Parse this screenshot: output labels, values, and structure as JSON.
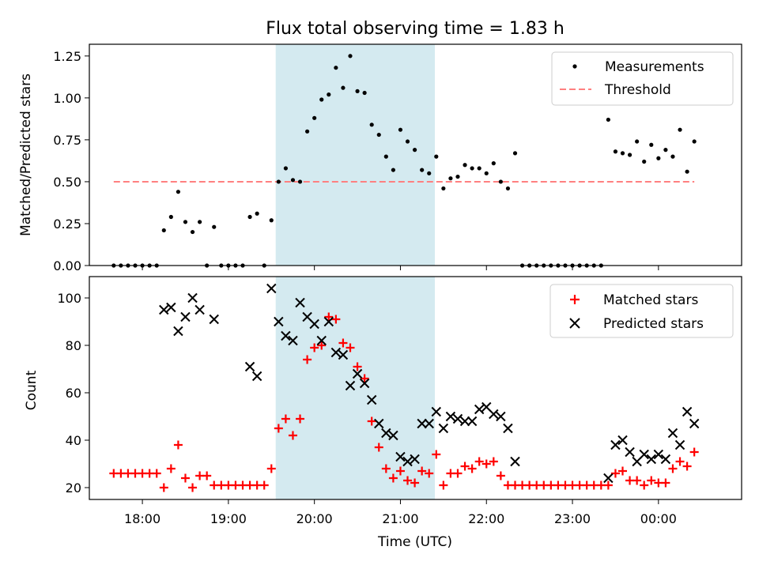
{
  "chart_data": [
    {
      "type": "scatter",
      "title": "Flux total observing time = 1.83 h",
      "xlabel": "",
      "ylabel": "Matched/Predicted stars",
      "xlim": [
        "17:23",
        "00:58"
      ],
      "ylim": [
        0,
        1.32
      ],
      "yticks": [
        "0.00",
        "0.25",
        "0.50",
        "0.75",
        "1.00",
        "1.25"
      ],
      "grid": false,
      "legend_position": "top-right",
      "shaded_interval": {
        "start": "19:33",
        "end": "21:24",
        "color": "#d4eaf0"
      },
      "series": [
        {
          "name": "Measurements",
          "marker": "dot",
          "color": "#000000",
          "points": [
            [
              "17:40",
              0
            ],
            [
              "17:45",
              0
            ],
            [
              "17:50",
              0
            ],
            [
              "17:55",
              0
            ],
            [
              "18:00",
              0
            ],
            [
              "18:05",
              0
            ],
            [
              "18:10",
              0
            ],
            [
              "18:15",
              0.21
            ],
            [
              "18:20",
              0.29
            ],
            [
              "18:25",
              0.44
            ],
            [
              "18:30",
              0.26
            ],
            [
              "18:35",
              0.2
            ],
            [
              "18:40",
              0.26
            ],
            [
              "18:45",
              0
            ],
            [
              "18:50",
              0.23
            ],
            [
              "18:55",
              0
            ],
            [
              "19:00",
              0
            ],
            [
              "19:05",
              0
            ],
            [
              "19:10",
              0
            ],
            [
              "19:15",
              0.29
            ],
            [
              "19:20",
              0.31
            ],
            [
              "19:25",
              0
            ],
            [
              "19:30",
              0.27
            ],
            [
              "19:35",
              0.5
            ],
            [
              "19:40",
              0.58
            ],
            [
              "19:45",
              0.51
            ],
            [
              "19:50",
              0.5
            ],
            [
              "19:55",
              0.8
            ],
            [
              "20:00",
              0.88
            ],
            [
              "20:05",
              0.99
            ],
            [
              "20:10",
              1.02
            ],
            [
              "20:15",
              1.18
            ],
            [
              "20:20",
              1.06
            ],
            [
              "20:25",
              1.25
            ],
            [
              "20:30",
              1.04
            ],
            [
              "20:35",
              1.03
            ],
            [
              "20:40",
              0.84
            ],
            [
              "20:45",
              0.78
            ],
            [
              "20:50",
              0.65
            ],
            [
              "20:55",
              0.57
            ],
            [
              "21:00",
              0.81
            ],
            [
              "21:05",
              0.74
            ],
            [
              "21:10",
              0.69
            ],
            [
              "21:15",
              0.57
            ],
            [
              "21:20",
              0.55
            ],
            [
              "21:25",
              0.65
            ],
            [
              "21:30",
              0.46
            ],
            [
              "21:35",
              0.52
            ],
            [
              "21:40",
              0.53
            ],
            [
              "21:45",
              0.6
            ],
            [
              "21:50",
              0.58
            ],
            [
              "21:55",
              0.58
            ],
            [
              "22:00",
              0.55
            ],
            [
              "22:05",
              0.61
            ],
            [
              "22:10",
              0.5
            ],
            [
              "22:15",
              0.46
            ],
            [
              "22:20",
              0.67
            ],
            [
              "22:25",
              0
            ],
            [
              "22:30",
              0
            ],
            [
              "22:35",
              0
            ],
            [
              "22:40",
              0
            ],
            [
              "22:45",
              0
            ],
            [
              "22:50",
              0
            ],
            [
              "22:55",
              0
            ],
            [
              "23:00",
              0
            ],
            [
              "23:05",
              0
            ],
            [
              "23:10",
              0
            ],
            [
              "23:15",
              0
            ],
            [
              "23:20",
              0
            ],
            [
              "23:25",
              0.87
            ],
            [
              "23:30",
              0.68
            ],
            [
              "23:35",
              0.67
            ],
            [
              "23:40",
              0.66
            ],
            [
              "23:45",
              0.74
            ],
            [
              "23:50",
              0.62
            ],
            [
              "23:55",
              0.72
            ],
            [
              "00:00",
              0.64
            ],
            [
              "00:05",
              0.69
            ],
            [
              "00:10",
              0.65
            ],
            [
              "00:15",
              0.81
            ],
            [
              "00:20",
              0.56
            ],
            [
              "00:25",
              0.74
            ]
          ]
        },
        {
          "name": "Threshold",
          "type": "line",
          "style": "dashed",
          "color": "#ff8080",
          "points": [
            [
              "17:40",
              0.5
            ],
            [
              "00:25",
              0.5
            ]
          ]
        }
      ]
    },
    {
      "type": "scatter",
      "title": "",
      "xlabel": "Time (UTC)",
      "ylabel": "Count",
      "xlim": [
        "17:23",
        "00:58"
      ],
      "ylim": [
        15,
        109
      ],
      "yticks": [
        "20",
        "40",
        "60",
        "80",
        "100"
      ],
      "xticks": [
        "18:00",
        "19:00",
        "20:00",
        "21:00",
        "22:00",
        "23:00",
        "00:00"
      ],
      "grid": false,
      "legend_position": "top-right",
      "shaded_interval": {
        "start": "19:33",
        "end": "21:24",
        "color": "#d4eaf0"
      },
      "series": [
        {
          "name": "Matched stars",
          "marker": "plus",
          "color": "#ff0000",
          "points": [
            [
              "17:40",
              26
            ],
            [
              "17:45",
              26
            ],
            [
              "17:50",
              26
            ],
            [
              "17:55",
              26
            ],
            [
              "18:00",
              26
            ],
            [
              "18:05",
              26
            ],
            [
              "18:10",
              26
            ],
            [
              "18:15",
              20
            ],
            [
              "18:20",
              28
            ],
            [
              "18:25",
              38
            ],
            [
              "18:30",
              24
            ],
            [
              "18:35",
              20
            ],
            [
              "18:40",
              25
            ],
            [
              "18:45",
              25
            ],
            [
              "18:50",
              21
            ],
            [
              "18:55",
              21
            ],
            [
              "19:00",
              21
            ],
            [
              "19:05",
              21
            ],
            [
              "19:10",
              21
            ],
            [
              "19:15",
              21
            ],
            [
              "19:20",
              21
            ],
            [
              "19:25",
              21
            ],
            [
              "19:30",
              28
            ],
            [
              "19:35",
              45
            ],
            [
              "19:40",
              49
            ],
            [
              "19:45",
              42
            ],
            [
              "19:50",
              49
            ],
            [
              "19:55",
              74
            ],
            [
              "20:00",
              79
            ],
            [
              "20:05",
              80
            ],
            [
              "20:10",
              92
            ],
            [
              "20:15",
              91
            ],
            [
              "20:20",
              81
            ],
            [
              "20:25",
              79
            ],
            [
              "20:30",
              71
            ],
            [
              "20:35",
              66
            ],
            [
              "20:40",
              48
            ],
            [
              "20:45",
              37
            ],
            [
              "20:50",
              28
            ],
            [
              "20:55",
              24
            ],
            [
              "21:00",
              27
            ],
            [
              "21:05",
              23
            ],
            [
              "21:10",
              22
            ],
            [
              "21:15",
              27
            ],
            [
              "21:20",
              26
            ],
            [
              "21:25",
              34
            ],
            [
              "21:30",
              21
            ],
            [
              "21:35",
              26
            ],
            [
              "21:40",
              26
            ],
            [
              "21:45",
              29
            ],
            [
              "21:50",
              28
            ],
            [
              "21:55",
              31
            ],
            [
              "22:00",
              30
            ],
            [
              "22:05",
              31
            ],
            [
              "22:10",
              25
            ],
            [
              "22:15",
              21
            ],
            [
              "22:20",
              21
            ],
            [
              "22:25",
              21
            ],
            [
              "22:30",
              21
            ],
            [
              "22:35",
              21
            ],
            [
              "22:40",
              21
            ],
            [
              "22:45",
              21
            ],
            [
              "22:50",
              21
            ],
            [
              "22:55",
              21
            ],
            [
              "23:00",
              21
            ],
            [
              "23:05",
              21
            ],
            [
              "23:10",
              21
            ],
            [
              "23:15",
              21
            ],
            [
              "23:20",
              21
            ],
            [
              "23:25",
              21
            ],
            [
              "23:30",
              26
            ],
            [
              "23:35",
              27
            ],
            [
              "23:40",
              23
            ],
            [
              "23:45",
              23
            ],
            [
              "23:50",
              21
            ],
            [
              "23:55",
              23
            ],
            [
              "00:00",
              22
            ],
            [
              "00:05",
              22
            ],
            [
              "00:10",
              28
            ],
            [
              "00:15",
              31
            ],
            [
              "00:20",
              29
            ],
            [
              "00:25",
              35
            ]
          ]
        },
        {
          "name": "Predicted stars",
          "marker": "x",
          "color": "#000000",
          "points": [
            [
              "18:15",
              95
            ],
            [
              "18:20",
              96
            ],
            [
              "18:25",
              86
            ],
            [
              "18:30",
              92
            ],
            [
              "18:35",
              100
            ],
            [
              "18:40",
              95
            ],
            [
              "18:50",
              91
            ],
            [
              "19:15",
              71
            ],
            [
              "19:20",
              67
            ],
            [
              "19:30",
              104
            ],
            [
              "19:35",
              90
            ],
            [
              "19:40",
              84
            ],
            [
              "19:45",
              82
            ],
            [
              "19:50",
              98
            ],
            [
              "19:55",
              92
            ],
            [
              "20:00",
              89
            ],
            [
              "20:05",
              82
            ],
            [
              "20:10",
              90
            ],
            [
              "20:15",
              77
            ],
            [
              "20:20",
              76
            ],
            [
              "20:25",
              63
            ],
            [
              "20:30",
              68
            ],
            [
              "20:35",
              64
            ],
            [
              "20:40",
              57
            ],
            [
              "20:45",
              47
            ],
            [
              "20:50",
              43
            ],
            [
              "20:55",
              42
            ],
            [
              "21:00",
              33
            ],
            [
              "21:05",
              31
            ],
            [
              "21:10",
              32
            ],
            [
              "21:15",
              47
            ],
            [
              "21:20",
              47
            ],
            [
              "21:25",
              52
            ],
            [
              "21:30",
              45
            ],
            [
              "21:35",
              50
            ],
            [
              "21:40",
              49
            ],
            [
              "21:45",
              48
            ],
            [
              "21:50",
              48
            ],
            [
              "21:55",
              53
            ],
            [
              "22:00",
              54
            ],
            [
              "22:05",
              51
            ],
            [
              "22:10",
              50
            ],
            [
              "22:15",
              45
            ],
            [
              "22:20",
              31
            ],
            [
              "23:25",
              24
            ],
            [
              "23:30",
              38
            ],
            [
              "23:35",
              40
            ],
            [
              "23:40",
              35
            ],
            [
              "23:45",
              31
            ],
            [
              "23:50",
              34
            ],
            [
              "23:55",
              32
            ],
            [
              "00:00",
              34
            ],
            [
              "00:05",
              32
            ],
            [
              "00:10",
              43
            ],
            [
              "00:15",
              38
            ],
            [
              "00:20",
              52
            ],
            [
              "00:25",
              47
            ]
          ]
        }
      ]
    }
  ]
}
